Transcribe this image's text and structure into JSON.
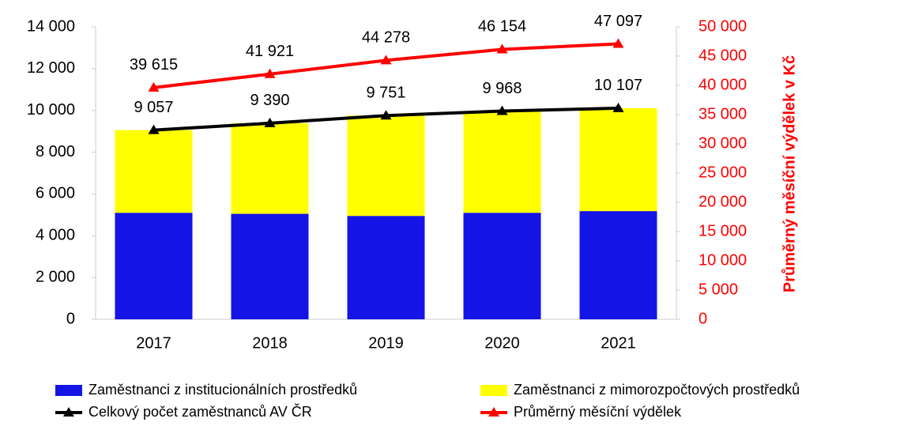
{
  "chart_data": {
    "type": "bar",
    "categories": [
      "2017",
      "2018",
      "2019",
      "2020",
      "2021"
    ],
    "series": [
      {
        "name": "Zaměstnanci z institucionálních prostředků",
        "type": "bar",
        "color": "#1414e6",
        "values": [
          5100,
          5050,
          4950,
          5100,
          5180
        ]
      },
      {
        "name": "Zaměstnanci z mimorozpočtových prostředků",
        "type": "bar",
        "color": "#ffff00",
        "values": [
          3957,
          4340,
          4801,
          4868,
          4927
        ]
      },
      {
        "name": "Celkový počet zaměstnanců AV ČR",
        "type": "line",
        "color": "#000000",
        "values": [
          9057,
          9390,
          9751,
          9968,
          10107
        ],
        "value_labels": [
          "9 057",
          "9 390",
          "9 751",
          "9 968",
          "10 107"
        ]
      },
      {
        "name": "Průměrný měsíční výdělek",
        "type": "line",
        "axis": "y2",
        "color": "#ff0000",
        "values": [
          39615,
          41921,
          44278,
          46154,
          47097
        ],
        "value_labels": [
          "39 615",
          "41 921",
          "44 278",
          "46 154",
          "47 097"
        ]
      }
    ],
    "ylim": [
      0,
      14000
    ],
    "yticks": [
      0,
      {
        "value": 2000,
        "label": "2 000"
      },
      {
        "value": 4000,
        "label": "4 000"
      },
      {
        "value": 6000,
        "label": "6 000"
      },
      {
        "value": 8000,
        "label": "8 000"
      },
      {
        "value": 10000,
        "label": "10 000"
      },
      {
        "value": 12000,
        "label": "12 000"
      },
      {
        "value": 14000,
        "label": "14 000"
      }
    ],
    "y2lim": [
      0,
      50000
    ],
    "y2ticks": [
      0,
      {
        "value": 5000,
        "label": "5 000"
      },
      {
        "value": 10000,
        "label": "10 000"
      },
      {
        "value": 15000,
        "label": "15 000"
      },
      {
        "value": 20000,
        "label": "20 000"
      },
      {
        "value": 25000,
        "label": "25 000"
      },
      {
        "value": 30000,
        "label": "30 000"
      },
      {
        "value": 35000,
        "label": "35 000"
      },
      {
        "value": 40000,
        "label": "40 000"
      },
      {
        "value": 45000,
        "label": "45 000"
      },
      {
        "value": 50000,
        "label": "50 000"
      }
    ],
    "y2label": "Průměrný měsíční výdělek v Kč",
    "legend": "bottom"
  }
}
